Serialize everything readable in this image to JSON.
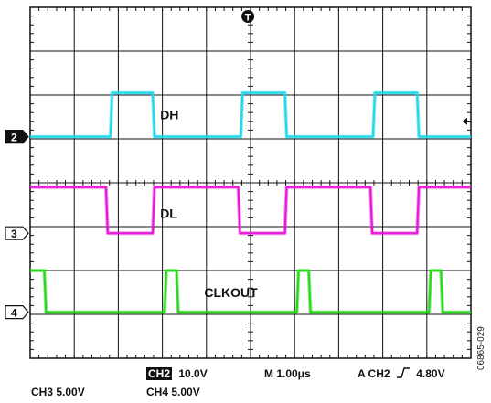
{
  "chart_data": {
    "type": "line",
    "title": "",
    "xlabel": "",
    "ylabel": "",
    "grid": true,
    "divisions": {
      "x": 10,
      "y": 8
    },
    "trigger_marker": "T",
    "trigger_level_marker": "arrow-left",
    "colors": {
      "DH": "#22d8ea",
      "DL": "#e61ad8",
      "CLKOUT": "#2ad81a"
    },
    "series": [
      {
        "name": "DH",
        "channel_marker": "2",
        "marker_style": "filled",
        "marker_level_div": 2.95,
        "low_div": 2.95,
        "high_div": 1.95,
        "transitions_div": [
          {
            "t": 1.82,
            "to": "high"
          },
          {
            "t": 2.78,
            "to": "low"
          },
          {
            "t": 4.78,
            "to": "high"
          },
          {
            "t": 5.78,
            "to": "low"
          },
          {
            "t": 7.78,
            "to": "high"
          },
          {
            "t": 8.78,
            "to": "low"
          }
        ]
      },
      {
        "name": "DL",
        "channel_marker": "3",
        "marker_style": "outline",
        "marker_level_div": 5.15,
        "low_div": 5.15,
        "high_div": 4.1,
        "transitions_div": [
          {
            "t": 1.72,
            "to": "low"
          },
          {
            "t": 2.78,
            "to": "high"
          },
          {
            "t": 4.72,
            "to": "low"
          },
          {
            "t": 5.78,
            "to": "high"
          },
          {
            "t": 7.72,
            "to": "low"
          },
          {
            "t": 8.78,
            "to": "high"
          }
        ]
      },
      {
        "name": "CLKOUT",
        "channel_marker": "4",
        "marker_style": "outline",
        "marker_level_div": 6.95,
        "low_div": 6.95,
        "high_div": 6.0,
        "transitions_div": [
          {
            "t": 0.0,
            "to": "high"
          },
          {
            "t": 0.32,
            "to": "low"
          },
          {
            "t": 3.05,
            "to": "high"
          },
          {
            "t": 3.32,
            "to": "low"
          },
          {
            "t": 6.05,
            "to": "high"
          },
          {
            "t": 6.32,
            "to": "low"
          },
          {
            "t": 9.05,
            "to": "high"
          },
          {
            "t": 9.32,
            "to": "low"
          }
        ]
      }
    ]
  },
  "readouts": {
    "ch2_tag": "CH2",
    "ch2_scale": "10.0V",
    "timebase": "M 1.00μs",
    "trigger": "A  CH2",
    "trigger_level": "4.80V",
    "ch3": "CH3  5.00V",
    "ch4": "CH4  5.00V"
  },
  "figure_id": "06865-029"
}
